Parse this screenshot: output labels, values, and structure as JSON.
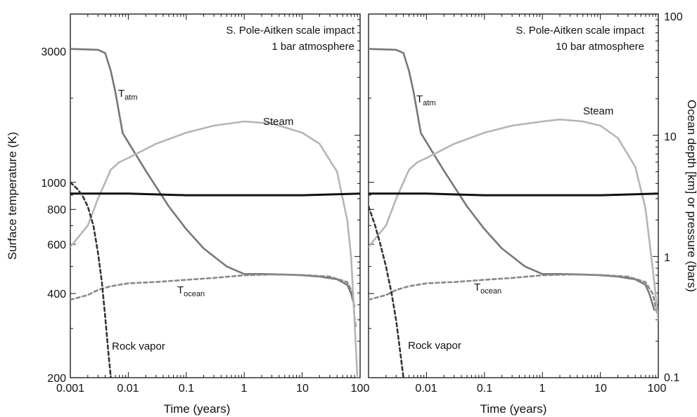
{
  "chart_data": [
    {
      "type": "line",
      "panel": "left",
      "annotation": [
        "S. Pole-Aitken scale impact",
        "1 bar atmosphere"
      ],
      "xlabel": "Time (years)",
      "ylabel_left": "Surface temperature (K)",
      "x_scale": "log",
      "y_scale": "log",
      "xlim": [
        0.001,
        100
      ],
      "ylim_left": [
        200,
        4000
      ],
      "ylim_right": [
        0.1,
        100
      ],
      "x_ticks": [
        "0.001",
        "0.01",
        "0.1",
        "1",
        "10",
        "100"
      ],
      "y_ticks_left": [
        "200",
        "400",
        "600",
        "800",
        "1000",
        "3000"
      ],
      "series": [
        {
          "name": "T_atm",
          "label_main": "T",
          "label_sub": "atm",
          "axis": "left",
          "color": "#777777",
          "style": "solid",
          "x": [
            0.001,
            0.003,
            0.004,
            0.005,
            0.006,
            0.008,
            0.02,
            0.05,
            0.1,
            0.2,
            0.5,
            1,
            2,
            5,
            10,
            20,
            40,
            60,
            70,
            80
          ],
          "y": [
            3000,
            2980,
            2900,
            2500,
            2100,
            1500,
            1100,
            820,
            680,
            580,
            500,
            470,
            470,
            468,
            465,
            460,
            450,
            430,
            400,
            360
          ]
        },
        {
          "name": "T_ocean",
          "label_main": "T",
          "label_sub": "ocean",
          "axis": "left",
          "color": "#888888",
          "style": "dashed",
          "x": [
            0.001,
            0.002,
            0.003,
            0.005,
            0.01,
            0.03,
            0.1,
            0.3,
            1,
            3,
            10,
            30,
            60,
            75,
            80,
            85
          ],
          "y": [
            380,
            395,
            412,
            425,
            435,
            440,
            448,
            455,
            465,
            468,
            466,
            460,
            440,
            400,
            330,
            300
          ]
        },
        {
          "name": "Steam",
          "axis": "right",
          "color": "#b5b5b5",
          "style": "solid",
          "x": [
            0.001,
            0.002,
            0.003,
            0.005,
            0.007,
            0.01,
            0.03,
            0.1,
            0.3,
            1,
            3,
            10,
            20,
            40,
            60,
            70,
            80,
            90
          ],
          "y": [
            1.2,
            1.8,
            3.0,
            5.2,
            6.0,
            6.5,
            8.5,
            10.5,
            12,
            13,
            12.5,
            10.5,
            8.5,
            5.0,
            2.0,
            1.0,
            0.3,
            0.1
          ]
        },
        {
          "name": "Ocean depth",
          "axis": "right",
          "color": "#111111",
          "style": "solid",
          "x": [
            0.001,
            0.01,
            0.1,
            1,
            10,
            100
          ],
          "y": [
            3.3,
            3.3,
            3.2,
            3.2,
            3.2,
            3.3
          ]
        },
        {
          "name": "Rock vapor",
          "axis": "left",
          "color": "#333333",
          "style": "dashed",
          "x": [
            0.001,
            0.0013,
            0.0016,
            0.002,
            0.0025,
            0.003,
            0.0035,
            0.004,
            0.0045,
            0.005
          ],
          "y": [
            1000,
            950,
            900,
            820,
            700,
            560,
            440,
            330,
            250,
            200
          ]
        }
      ]
    },
    {
      "type": "line",
      "panel": "right",
      "annotation": [
        "S. Pole-Aitken scale impact",
        "10 bar atmosphere"
      ],
      "xlabel": "Time (years)",
      "ylabel_right": "Ocean depth [km] or pressure (bars)",
      "x_scale": "log",
      "y_scale": "log",
      "xlim": [
        0.001,
        100
      ],
      "ylim_left": [
        200,
        4000
      ],
      "ylim_right": [
        0.1,
        100
      ],
      "x_ticks": [
        "0.01",
        "0.1",
        "1",
        "10",
        "100"
      ],
      "y_ticks_right": [
        "0.1",
        "1",
        "10",
        "100"
      ],
      "series": [
        {
          "name": "T_atm",
          "label_main": "T",
          "label_sub": "atm",
          "axis": "left",
          "color": "#777777",
          "style": "solid",
          "x": [
            0.001,
            0.003,
            0.004,
            0.005,
            0.006,
            0.008,
            0.02,
            0.05,
            0.1,
            0.2,
            0.5,
            1,
            2,
            5,
            10,
            20,
            40,
            60,
            70,
            85
          ],
          "y": [
            3000,
            2980,
            2900,
            2500,
            2100,
            1500,
            1100,
            820,
            680,
            580,
            500,
            470,
            470,
            468,
            465,
            460,
            450,
            430,
            400,
            350
          ]
        },
        {
          "name": "T_ocean",
          "label_main": "T",
          "label_sub": "ocean",
          "axis": "left",
          "color": "#888888",
          "style": "dashed",
          "x": [
            0.001,
            0.002,
            0.003,
            0.005,
            0.01,
            0.03,
            0.1,
            0.3,
            1,
            3,
            10,
            30,
            60,
            80,
            95
          ],
          "y": [
            380,
            395,
            412,
            425,
            435,
            440,
            448,
            455,
            465,
            468,
            466,
            460,
            440,
            400,
            340
          ]
        },
        {
          "name": "Steam",
          "axis": "right",
          "color": "#b5b5b5",
          "style": "solid",
          "x": [
            0.001,
            0.002,
            0.003,
            0.005,
            0.007,
            0.01,
            0.03,
            0.1,
            0.3,
            1,
            2,
            5,
            10,
            20,
            40,
            60,
            80,
            100
          ],
          "y": [
            1.2,
            1.8,
            3.0,
            5.2,
            6.0,
            6.5,
            8.5,
            10.5,
            12,
            13,
            13.5,
            13,
            12,
            9.5,
            5.5,
            2.5,
            0.8,
            0.3
          ]
        },
        {
          "name": "Ocean depth",
          "axis": "right",
          "color": "#111111",
          "style": "solid",
          "x": [
            0.001,
            0.01,
            0.1,
            1,
            10,
            100
          ],
          "y": [
            3.3,
            3.3,
            3.2,
            3.2,
            3.2,
            3.3
          ]
        },
        {
          "name": "Rock vapor",
          "axis": "left",
          "color": "#333333",
          "style": "dashed",
          "x": [
            0.001,
            0.0013,
            0.0016,
            0.002,
            0.0025,
            0.003,
            0.0035,
            0.004
          ],
          "y": [
            820,
            700,
            600,
            500,
            400,
            320,
            250,
            200
          ]
        }
      ]
    }
  ]
}
